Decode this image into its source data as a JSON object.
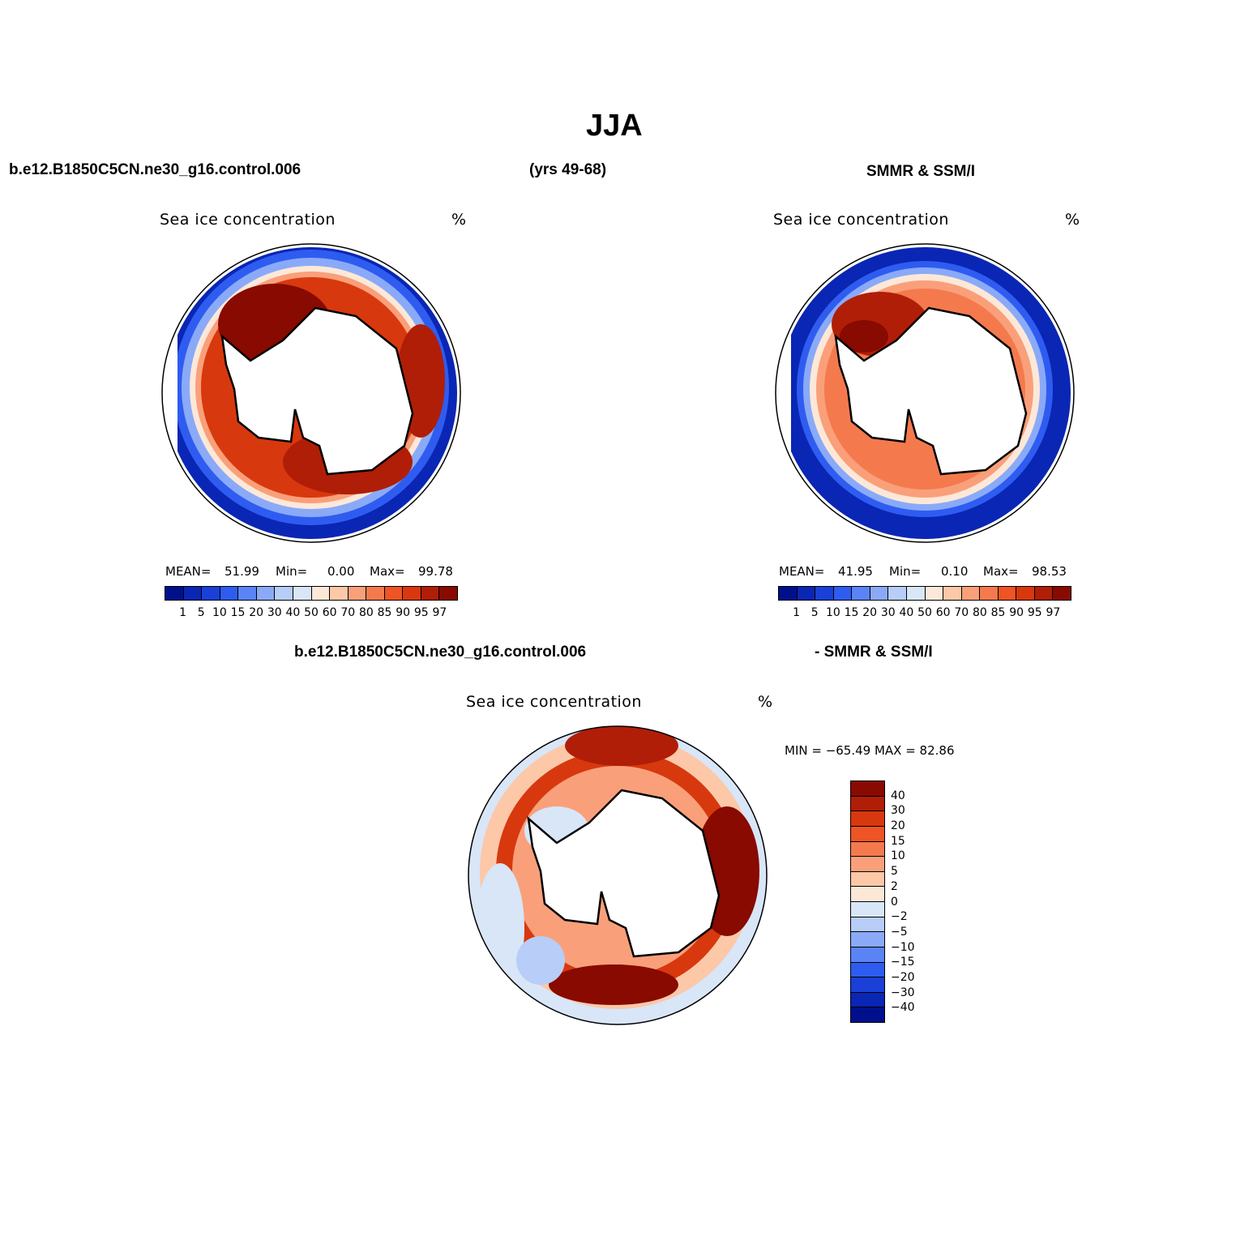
{
  "title": "JJA",
  "header": {
    "case": "b.e12.B1850C5CN.ne30_g16.control.006",
    "years": "(yrs 49-68)",
    "obs": "SMMR & SSM/I",
    "diff_case": "b.e12.B1850C5CN.ne30_g16.control.006",
    "diff_obs": "- SMMR & SSM/I"
  },
  "panels": {
    "model": {
      "variable": "Sea ice concentration",
      "units": "%",
      "mean_label": "MEAN=",
      "mean": "51.99",
      "min_label": "Min=",
      "min": "0.00",
      "max_label": "Max=",
      "max": "99.78"
    },
    "obs": {
      "variable": "Sea ice concentration",
      "units": "%",
      "mean_label": "MEAN=",
      "mean": "41.95",
      "min_label": "Min=",
      "min": "0.10",
      "max_label": "Max=",
      "max": "98.53"
    },
    "diff": {
      "variable": "Sea ice concentration",
      "units": "%",
      "minmax": "MIN = −65.49 MAX =   82.86"
    }
  },
  "colorbar_abs": {
    "ticks": [
      "1",
      "5",
      "10",
      "15",
      "20",
      "30",
      "40",
      "50",
      "60",
      "70",
      "80",
      "85",
      "90",
      "95",
      "97"
    ],
    "colors": [
      "#00108c",
      "#0a26b4",
      "#1a40d8",
      "#2f5cf0",
      "#5a84f6",
      "#8aaaf8",
      "#b8cdf8",
      "#d8e6f8",
      "#fde8d8",
      "#fcc8a8",
      "#f9a07a",
      "#f47a4e",
      "#ee5424",
      "#d8380e",
      "#b01e08",
      "#880a00"
    ]
  },
  "colorbar_diff": {
    "ticks": [
      "40",
      "30",
      "20",
      "15",
      "10",
      "5",
      "2",
      "0",
      "−2",
      "−5",
      "−10",
      "−15",
      "−20",
      "−30",
      "−40"
    ],
    "colors": [
      "#880a00",
      "#b01e08",
      "#d8380e",
      "#ee5424",
      "#f47a4e",
      "#f9a07a",
      "#fcc8a8",
      "#fde8d8",
      "#d8e6f8",
      "#b8cdf8",
      "#8aaaf8",
      "#5a84f6",
      "#2f5cf0",
      "#1a40d8",
      "#0a26b4",
      "#00108c"
    ]
  }
}
